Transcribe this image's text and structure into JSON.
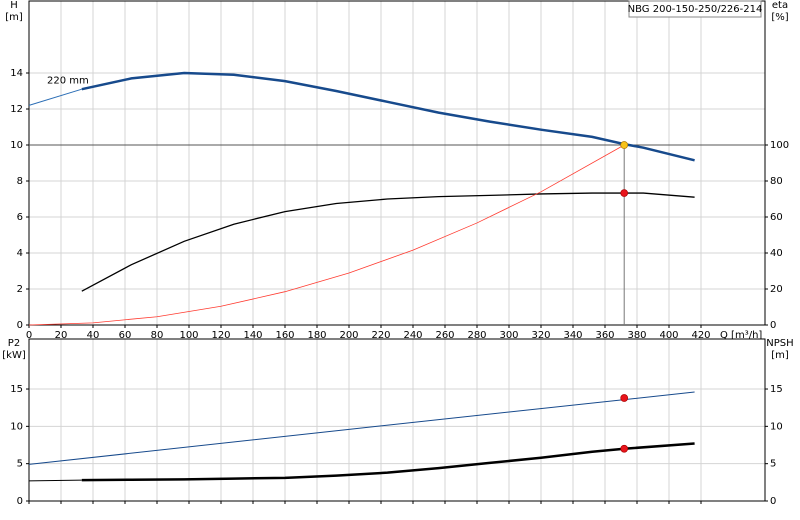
{
  "chart_data": [
    {
      "type": "line",
      "title": "NBG 200-150-250/226-214",
      "annotation": "220 mm",
      "x_label": "Q [m³/h]",
      "y_label": [
        "H",
        "[m]"
      ],
      "y2_label": [
        "eta",
        "[%]"
      ],
      "xlim": [
        0,
        460
      ],
      "xticks": [
        0,
        20,
        40,
        60,
        80,
        100,
        120,
        140,
        160,
        180,
        200,
        220,
        240,
        260,
        280,
        300,
        320,
        340,
        360,
        380,
        400,
        420
      ],
      "ylim": [
        0,
        18
      ],
      "yticks": [
        0,
        2,
        4,
        6,
        8,
        10,
        12,
        14
      ],
      "y2lim": [
        0,
        180
      ],
      "y2ticks": [
        0,
        20,
        40,
        60,
        80,
        100
      ],
      "grid": true,
      "series": [
        {
          "color": "#2a6db5",
          "width": 1,
          "x": [
            0,
            33
          ],
          "values": [
            12.2,
            13.1
          ]
        },
        {
          "color": "#174a8c",
          "width": 2.5,
          "x": [
            33,
            64,
            97,
            128,
            160,
            192,
            224,
            256,
            288,
            320,
            352,
            372,
            384,
            416
          ],
          "values": [
            13.1,
            13.7,
            14.0,
            13.9,
            13.55,
            13.0,
            12.4,
            11.8,
            11.3,
            10.85,
            10.45,
            10.05,
            9.85,
            9.15
          ]
        },
        {
          "color": "#000000",
          "width": 1.3,
          "axis": "y2",
          "x": [
            33,
            64,
            97,
            128,
            160,
            192,
            224,
            256,
            288,
            320,
            352,
            372,
            384,
            416
          ],
          "values": [
            18.8,
            33.5,
            46.5,
            56,
            63,
            67.5,
            70,
            71.3,
            72,
            72.8,
            73.3,
            73.3,
            73.3,
            71
          ]
        },
        {
          "color": "#ff3b30",
          "width": 0.8,
          "x": [
            0,
            40,
            80,
            120,
            160,
            200,
            240,
            280,
            320,
            372
          ],
          "values": [
            0,
            0.12,
            0.46,
            1.04,
            1.85,
            2.89,
            4.16,
            5.67,
            7.4,
            10
          ]
        }
      ],
      "points": [
        {
          "x": 372,
          "y": 10,
          "color": "#f7c31a",
          "guide": true
        },
        {
          "x": 372,
          "y": 73.3,
          "axis": "y2",
          "color": "#e8141c"
        }
      ]
    },
    {
      "type": "line",
      "y_label": [
        "P2",
        "[kW]"
      ],
      "y2_label": [
        "NPSH",
        "[m]"
      ],
      "xlim": [
        0,
        460
      ],
      "xticks": [
        0,
        20,
        40,
        60,
        80,
        100,
        120,
        140,
        160,
        180,
        200,
        220,
        240,
        260,
        280,
        300,
        320,
        340,
        360,
        380,
        400,
        420
      ],
      "ylim": [
        0,
        21.7
      ],
      "yticks": [
        0,
        5,
        10,
        15
      ],
      "y2lim": [
        0,
        21.7
      ],
      "y2ticks": [
        0,
        5,
        10,
        15
      ],
      "grid": true,
      "series": [
        {
          "color": "#174a8c",
          "width": 1,
          "axis": "y2",
          "x": [
            0,
            200,
            416
          ],
          "values": [
            4.9,
            9.6,
            14.6
          ]
        },
        {
          "color": "#000000",
          "width": 1,
          "x": [
            0,
            33
          ],
          "values": [
            2.7,
            2.8
          ]
        },
        {
          "color": "#000000",
          "width": 2.5,
          "x": [
            33,
            64,
            97,
            128,
            160,
            192,
            224,
            256,
            288,
            320,
            352,
            372,
            416
          ],
          "values": [
            2.8,
            2.85,
            2.9,
            3.0,
            3.1,
            3.4,
            3.8,
            4.4,
            5.1,
            5.8,
            6.6,
            7.0,
            7.7
          ]
        }
      ],
      "points": [
        {
          "x": 372,
          "y": 13.8,
          "axis": "y2",
          "color": "#e8141c"
        },
        {
          "x": 372,
          "y": 7.0,
          "color": "#e8141c"
        }
      ]
    }
  ]
}
